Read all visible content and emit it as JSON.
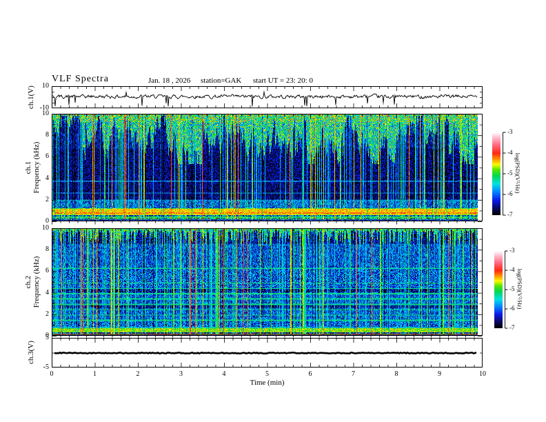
{
  "header": {
    "title": "VLF  Spectra",
    "date": "Jan. 18 , 2026",
    "station": "station=GAK",
    "start_ut": "start  UT  =   23: 20: 0"
  },
  "chart_data": {
    "type": "heatmap",
    "figure": "VLF spectra multi-panel: ch.1 voltage trace, ch.1 spectrogram, ch.2 spectrogram, ch.3 voltage trace",
    "time_axis": {
      "label": "Time  (min)",
      "min": 0,
      "max": 10,
      "major_step": 1,
      "minor_step": 0.2,
      "tick_labels": [
        "0",
        "1",
        "2",
        "3",
        "4",
        "5",
        "6",
        "7",
        "8",
        "9",
        "10"
      ],
      "data_end_min": 9.87
    },
    "panels": {
      "ch1_wave": {
        "type": "line",
        "ylabel": "ch.1(V)",
        "ylim": [
          -10,
          10
        ],
        "ytick_values": [
          10,
          -10
        ],
        "ytick_labels": [
          "10",
          "-10"
        ],
        "signal": {
          "baseline_v": 0.9,
          "noise_v": 1.3,
          "spike_count": 15,
          "spike_down_v": -8,
          "spike_up_v": 6,
          "seed": 42
        }
      },
      "ch1_spec": {
        "type": "heatmap",
        "ylabel_channel": "ch.1",
        "ylabel_axis": "Frequency  (kHz)",
        "ylim": [
          0,
          10
        ],
        "ytick_values": [
          10,
          8,
          6,
          4,
          2,
          0
        ],
        "ytick_labels": [
          "10",
          "8",
          "6",
          "4",
          "2",
          "0"
        ],
        "value_range": [
          -7,
          -3
        ],
        "seed": 7,
        "top_mode": "icicle",
        "icicle_range_khz": [
          5.3,
          9.9
        ],
        "icicle_value": -5.35,
        "streak_density": 0.1,
        "red_top_mark_density": 0.05,
        "harmonic_lines_khz": [
          1.9,
          2.6,
          3.7
        ],
        "harmonic_line_value": -5.8,
        "dark_bands_khz": [],
        "bands": [
          [
            0.0,
            0.1,
            -6.3,
            0.6
          ],
          [
            0.1,
            0.18,
            -5.0,
            0.6
          ],
          [
            0.18,
            0.28,
            -6.2,
            1.3
          ],
          [
            0.28,
            0.36,
            -5.1,
            0.5
          ],
          [
            0.36,
            0.5,
            -6.1,
            0.9
          ],
          [
            0.5,
            0.66,
            -4.55,
            0.35
          ],
          [
            0.66,
            0.74,
            -4.2,
            0.4
          ],
          [
            0.74,
            1.06,
            -4.45,
            0.3
          ],
          [
            1.06,
            1.18,
            -4.9,
            0.45
          ],
          [
            1.18,
            2.0,
            -6.0,
            0.8
          ],
          [
            2.0,
            6.8,
            -6.65,
            0.5
          ],
          [
            6.8,
            10.0,
            -6.5,
            0.6
          ]
        ]
      },
      "ch2_spec": {
        "type": "heatmap",
        "ylabel_channel": "ch.2",
        "ylabel_axis": "Frequency  (kHz)",
        "ylim": [
          0,
          10
        ],
        "ytick_values": [
          10,
          8,
          6,
          4,
          2,
          0
        ],
        "ytick_labels": [
          "10",
          "8",
          "6",
          "4",
          "2",
          "0"
        ],
        "value_range": [
          -7,
          -3
        ],
        "seed": 13,
        "top_mode": "spikes",
        "spike_depth_khz": 1.5,
        "spike_value": -5.2,
        "streak_density": 0.14,
        "red_top_mark_density": 0.04,
        "harmonic_lines_khz": [
          1.4,
          1.9,
          2.4,
          2.9,
          3.4,
          3.9,
          4.4,
          4.9,
          6.3
        ],
        "harmonic_line_value": -5.3,
        "dark_bands_khz": [
          [
            2.55,
            2.85
          ],
          [
            4.05,
            4.35
          ]
        ],
        "bands": [
          [
            0.0,
            0.08,
            -6.7,
            0.3
          ],
          [
            0.08,
            0.15,
            -4.4,
            0.5
          ],
          [
            0.15,
            0.28,
            -6.5,
            0.5
          ],
          [
            0.28,
            0.62,
            -4.75,
            0.45
          ],
          [
            0.62,
            0.8,
            -5.6,
            0.6
          ],
          [
            0.8,
            8.6,
            -6.1,
            0.75
          ],
          [
            8.6,
            10.0,
            -6.55,
            0.6
          ]
        ]
      },
      "ch3_wave": {
        "type": "line",
        "ylabel": "ch.3(V)",
        "ylim": [
          -5,
          5
        ],
        "ytick_values": [
          5,
          -5
        ],
        "ytick_labels": [
          "5",
          "-5"
        ],
        "signal": {
          "baseline_v": 0,
          "noise_v": 0.15,
          "thick": true,
          "seed": 99
        }
      }
    },
    "colorbars": [
      {
        "label": "log(PSD)(V²/Hz)",
        "tick_values": [
          -3,
          -4,
          -5,
          -6,
          -7
        ],
        "tick_labels": [
          "-3",
          "-4",
          "-5",
          "-6",
          "-7"
        ]
      },
      {
        "label": "log(PSD)(V²/Hz)",
        "tick_values": [
          -3,
          -4,
          -5,
          -6,
          -7
        ],
        "tick_labels": [
          "-3",
          "-4",
          "-5",
          "-6",
          "-7"
        ]
      }
    ],
    "colormap": {
      "stops": [
        [
          -7.0,
          [
            0,
            0,
            0
          ]
        ],
        [
          -6.7,
          [
            8,
            8,
            90
          ]
        ],
        [
          -6.3,
          [
            10,
            25,
            230
          ]
        ],
        [
          -5.9,
          [
            0,
            130,
            255
          ]
        ],
        [
          -5.5,
          [
            0,
            225,
            225
          ]
        ],
        [
          -5.1,
          [
            0,
            215,
            80
          ]
        ],
        [
          -4.8,
          [
            90,
            230,
            0
          ]
        ],
        [
          -4.55,
          [
            250,
            250,
            0
          ]
        ],
        [
          -4.3,
          [
            255,
            150,
            0
          ]
        ],
        [
          -4.0,
          [
            255,
            40,
            20
          ]
        ],
        [
          -3.6,
          [
            255,
            105,
            130
          ]
        ],
        [
          -3.25,
          [
            255,
            185,
            200
          ]
        ],
        [
          -3.0,
          [
            255,
            250,
            252
          ]
        ]
      ]
    }
  }
}
